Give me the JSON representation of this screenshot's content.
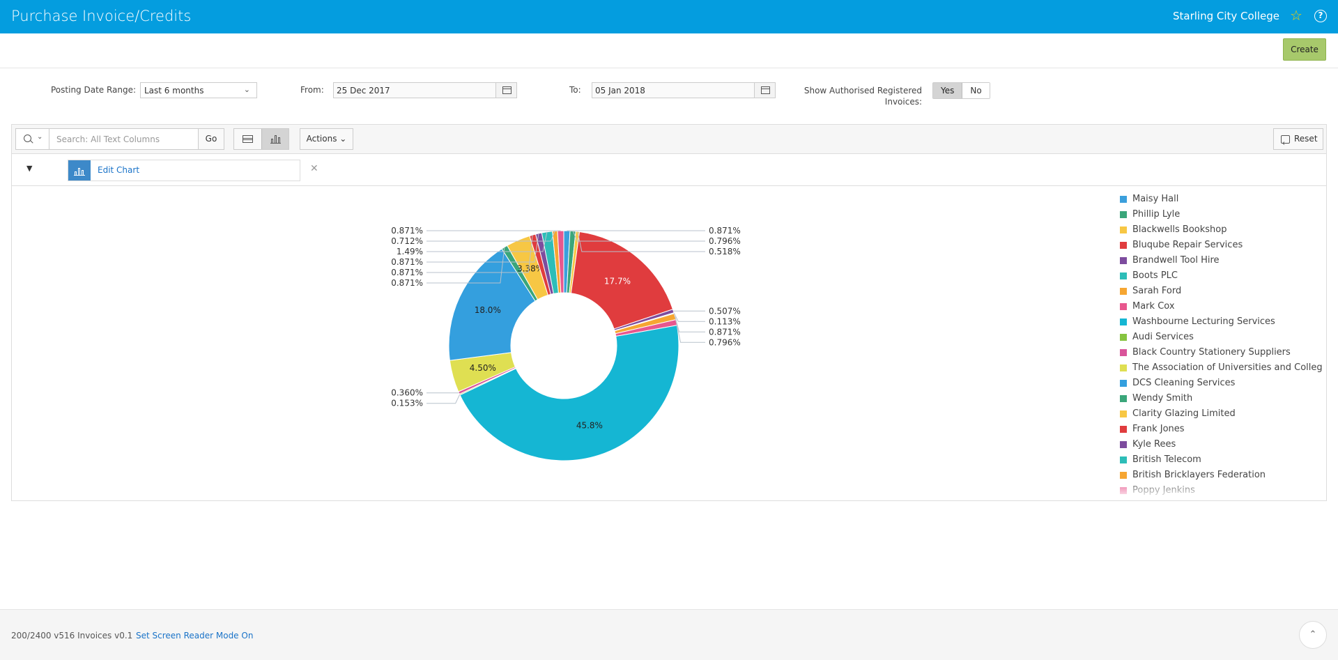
{
  "header": {
    "title": "Purchase Invoice/Credits",
    "org": "Starling City College",
    "star_icon": "star-icon",
    "help_icon": "help-icon",
    "help_glyph": "?",
    "colors": {
      "bar": "#049ddf",
      "star": "#f5d000"
    }
  },
  "toolbar": {
    "create_label": "Create",
    "create_color": "#a7c96b"
  },
  "filters": {
    "posting_date_range_label": "Posting Date Range:",
    "posting_date_range_value": "Last 6 months",
    "from_label": "From:",
    "from_value": "25 Dec 2017",
    "to_label": "To:",
    "to_value": "05 Jan 2018",
    "show_authorised_label_line1": "Show Authorised Registered",
    "show_authorised_label_line2": "Invoices:",
    "yes_label": "Yes",
    "no_label": "No",
    "selected": "Yes"
  },
  "report_toolbar": {
    "search_placeholder": "Search: All Text Columns",
    "go_label": "Go",
    "actions_label": "Actions",
    "reset_label": "Reset",
    "active_view": "chart"
  },
  "edit_chart": {
    "label": "Edit Chart"
  },
  "footer": {
    "version": "200/2400 v516 Invoices v0.1",
    "screen_reader": "Set Screen Reader Mode On"
  },
  "chart_data": {
    "type": "pie",
    "donut": true,
    "legend_position": "right",
    "slices": [
      {
        "name": "Maisy Hall",
        "value": 0.871,
        "label": "0.871%",
        "color": "#3b9fdc"
      },
      {
        "name": "Phillip Lyle",
        "value": 0.796,
        "label": "0.796%",
        "color": "#3aa67a"
      },
      {
        "name": "Blackwells Bookshop",
        "value": 0.518,
        "label": "0.518%",
        "color": "#f7c744"
      },
      {
        "name": "Bluqube Repair Services",
        "value": 17.7,
        "label": "17.7%",
        "color": "#e03c3e"
      },
      {
        "name": "Brandwell Tool Hire",
        "value": 0.507,
        "label": "0.507%",
        "color": "#7d4c9e"
      },
      {
        "name": "Boots PLC",
        "value": 0.113,
        "label": "0.113%",
        "color": "#2dbdb8"
      },
      {
        "name": "Sarah Ford",
        "value": 0.871,
        "label": "0.871%",
        "color": "#f6a632"
      },
      {
        "name": "Mark Cox",
        "value": 0.796,
        "label": "0.796%",
        "color": "#e8578e"
      },
      {
        "name": "Washbourne Lecturing Services",
        "value": 45.8,
        "label": "45.8%",
        "color": "#15b6d3"
      },
      {
        "name": "Audi Services",
        "value": 0.153,
        "label": "0.153%",
        "color": "#86c440"
      },
      {
        "name": "Black Country Stationery Suppliers",
        "value": 0.36,
        "label": "0.360%",
        "color": "#d9549a"
      },
      {
        "name": "The Association of Universities and Colleges",
        "value": 4.5,
        "label": "4.50%",
        "color": "#dfdf52"
      },
      {
        "name": "DCS Cleaning Services",
        "value": 18.0,
        "label": "18.0%",
        "color": "#349fde"
      },
      {
        "name": "Wendy Smith",
        "value": 0.871,
        "label": "0.871%",
        "color": "#3aa67a"
      },
      {
        "name": "Clarity Glazing Limited",
        "value": 3.38,
        "label": "3.38%",
        "color": "#f7c744"
      },
      {
        "name": "Frank Jones",
        "value": 0.871,
        "label": "0.871%",
        "color": "#e03c3e"
      },
      {
        "name": "Kyle Rees",
        "value": 0.871,
        "label": "0.871%",
        "color": "#7d4c9e"
      },
      {
        "name": "British Telecom",
        "value": 1.49,
        "label": "1.49%",
        "color": "#2dbdb8"
      },
      {
        "name": "British Bricklayers Federation",
        "value": 0.712,
        "label": "0.712%",
        "color": "#f6a632"
      },
      {
        "name": "Poppy Jenkins",
        "value": 0.871,
        "label": "0.871%",
        "color": "#e8578e"
      }
    ]
  }
}
